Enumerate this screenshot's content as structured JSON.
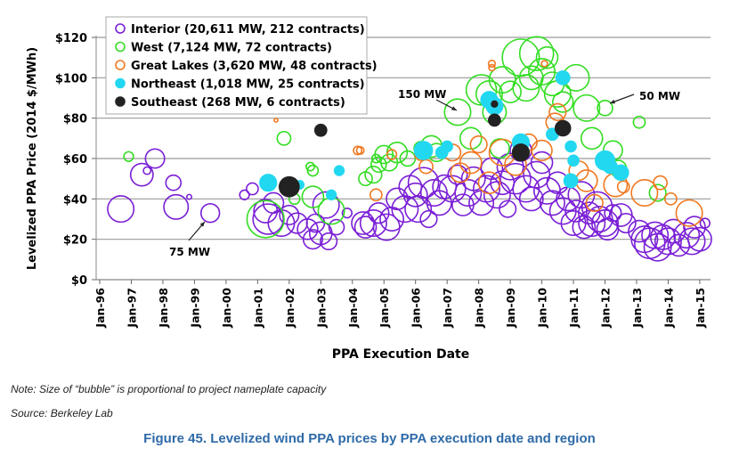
{
  "chart_data": {
    "type": "scatter",
    "subtype": "bubble",
    "xlabel": "PPA Execution Date",
    "ylabel": "Levelized PPA Price (2014 $/MWh)",
    "ylim": [
      0,
      120
    ],
    "yticks": [
      "$0",
      "$20",
      "$40",
      "$60",
      "$80",
      "$100",
      "$120"
    ],
    "xticks": [
      "Jan-96",
      "Jan-97",
      "Jan-98",
      "Jan-99",
      "Jan-00",
      "Jan-01",
      "Jan-02",
      "Jan-03",
      "Jan-04",
      "Jan-05",
      "Jan-06",
      "Jan-07",
      "Jan-08",
      "Jan-09",
      "Jan-10",
      "Jan-11",
      "Jan-12",
      "Jan-13",
      "Jan-14",
      "Jan-15"
    ],
    "grid": "horizontal",
    "legend_position": "top-left",
    "bubble_size": "project nameplate capacity (MW)",
    "annotations": [
      {
        "text": "75 MW",
        "date": "1999-07",
        "price": 33
      },
      {
        "text": "150 MW",
        "date": "2007-05",
        "price": 83
      },
      {
        "text": "50 MW",
        "date": "2012-01",
        "price": 85
      }
    ],
    "series": [
      {
        "name": "Interior (20,611 MW, 212 contracts)",
        "color": "#7a1fd6",
        "filled": false,
        "points": [
          [
            "1996-09",
            35,
            150
          ],
          [
            "1997-05",
            52,
            110
          ],
          [
            "1997-07",
            54,
            12
          ],
          [
            "1997-10",
            60,
            80
          ],
          [
            "1998-05",
            48,
            50
          ],
          [
            "1998-06",
            36,
            130
          ],
          [
            "1998-11",
            41,
            5
          ],
          [
            "1999-07",
            33,
            75
          ],
          [
            "2000-08",
            42,
            20
          ],
          [
            "2000-11",
            45,
            30
          ],
          [
            "2001-04",
            34,
            120
          ],
          [
            "2001-05",
            30,
            200
          ],
          [
            "2001-07",
            38,
            90
          ],
          [
            "2001-10",
            28,
            150
          ],
          [
            "2002-01",
            32,
            80
          ],
          [
            "2002-04",
            28,
            90
          ],
          [
            "2002-08",
            25,
            90
          ],
          [
            "2002-10",
            20,
            80
          ],
          [
            "2002-11",
            28,
            70
          ],
          [
            "2003-01",
            23,
            110
          ],
          [
            "2003-03",
            37,
            150
          ],
          [
            "2003-04",
            19,
            60
          ],
          [
            "2003-07",
            26,
            50
          ],
          [
            "2003-11",
            33,
            20
          ],
          [
            "2004-05",
            28,
            110
          ],
          [
            "2004-06",
            26,
            100
          ],
          [
            "2004-09",
            28,
            150
          ],
          [
            "2004-11",
            33,
            90
          ],
          [
            "2005-02",
            26,
            150
          ],
          [
            "2005-04",
            30,
            120
          ],
          [
            "2005-06",
            40,
            100
          ],
          [
            "2005-09",
            35,
            150
          ],
          [
            "2005-11",
            46,
            110
          ],
          [
            "2006-01",
            42,
            120
          ],
          [
            "2006-02",
            35,
            150
          ],
          [
            "2006-04",
            48,
            200
          ],
          [
            "2006-06",
            30,
            60
          ],
          [
            "2006-08",
            43,
            150
          ],
          [
            "2006-10",
            38,
            130
          ],
          [
            "2006-12",
            46,
            120
          ],
          [
            "2007-03",
            45,
            150
          ],
          [
            "2007-05",
            52,
            80
          ],
          [
            "2007-07",
            37,
            100
          ],
          [
            "2007-09",
            43,
            150
          ],
          [
            "2007-11",
            50,
            120
          ],
          [
            "2008-02",
            38,
            130
          ],
          [
            "2008-04",
            45,
            150
          ],
          [
            "2008-06",
            55,
            100
          ],
          [
            "2008-08",
            42,
            150
          ],
          [
            "2008-10",
            48,
            120
          ],
          [
            "2008-12",
            35,
            60
          ],
          [
            "2009-01",
            56,
            150
          ],
          [
            "2009-03",
            50,
            200
          ],
          [
            "2009-05",
            64,
            100
          ],
          [
            "2009-07",
            45,
            150
          ],
          [
            "2009-09",
            40,
            120
          ],
          [
            "2009-11",
            52,
            150
          ],
          [
            "2010-01",
            58,
            100
          ],
          [
            "2010-03",
            44,
            150
          ],
          [
            "2010-05",
            38,
            130
          ],
          [
            "2010-07",
            48,
            100
          ],
          [
            "2010-09",
            34,
            150
          ],
          [
            "2010-11",
            40,
            120
          ],
          [
            "2011-01",
            28,
            130
          ],
          [
            "2011-02",
            34,
            100
          ],
          [
            "2011-04",
            42,
            150
          ],
          [
            "2011-05",
            26,
            110
          ],
          [
            "2011-07",
            33,
            100
          ],
          [
            "2011-08",
            28,
            150
          ],
          [
            "2011-10",
            36,
            200
          ],
          [
            "2011-11",
            30,
            140
          ],
          [
            "2012-01",
            28,
            150
          ],
          [
            "2012-02",
            25,
            100
          ],
          [
            "2012-04",
            33,
            60
          ],
          [
            "2012-07",
            32,
            110
          ],
          [
            "2012-09",
            28,
            80
          ],
          [
            "2013-02",
            24,
            100
          ],
          [
            "2013-04",
            20,
            150
          ],
          [
            "2013-06",
            18,
            200
          ],
          [
            "2013-08",
            22,
            150
          ],
          [
            "2013-09",
            16,
            160
          ],
          [
            "2013-11",
            21,
            130
          ],
          [
            "2014-01",
            19,
            150
          ],
          [
            "2014-03",
            24,
            120
          ],
          [
            "2014-05",
            17,
            100
          ],
          [
            "2014-08",
            22,
            140
          ],
          [
            "2014-10",
            19,
            150
          ],
          [
            "2014-11",
            26,
            100
          ],
          [
            "2015-01",
            20,
            120
          ],
          [
            "2015-03",
            28,
            20
          ]
        ]
      },
      {
        "name": "West (7,124 MW, 72 contracts)",
        "color": "#33dd22",
        "filled": false,
        "points": [
          [
            "1996-12",
            61,
            20
          ],
          [
            "2001-04",
            30,
            300
          ],
          [
            "2001-11",
            70,
            40
          ],
          [
            "2002-03",
            40,
            25
          ],
          [
            "2002-09",
            56,
            15
          ],
          [
            "2002-10",
            54,
            25
          ],
          [
            "2002-10",
            41,
            100
          ],
          [
            "2003-05",
            34,
            150
          ],
          [
            "2004-06",
            50,
            40
          ],
          [
            "2004-09",
            52,
            60
          ],
          [
            "2004-10",
            60,
            15
          ],
          [
            "2004-11",
            57,
            50
          ],
          [
            "2005-01",
            62,
            70
          ],
          [
            "2005-03",
            58,
            60
          ],
          [
            "2005-06",
            63,
            90
          ],
          [
            "2005-10",
            60,
            50
          ],
          [
            "2006-03",
            65,
            40
          ],
          [
            "2006-07",
            66,
            100
          ],
          [
            "2006-09",
            63,
            70
          ],
          [
            "2007-05",
            83,
            150
          ],
          [
            "2007-10",
            70,
            100
          ],
          [
            "2008-02",
            94,
            200
          ],
          [
            "2008-05",
            92,
            150
          ],
          [
            "2008-07",
            83,
            120
          ],
          [
            "2008-09",
            65,
            80
          ],
          [
            "2008-10",
            99,
            150
          ],
          [
            "2009-01",
            93,
            100
          ],
          [
            "2009-05",
            110,
            300
          ],
          [
            "2009-07",
            95,
            150
          ],
          [
            "2009-09",
            100,
            120
          ],
          [
            "2009-11",
            112,
            250
          ],
          [
            "2010-01",
            103,
            150
          ],
          [
            "2010-03",
            110,
            100
          ],
          [
            "2010-05",
            97,
            120
          ],
          [
            "2010-07",
            92,
            150
          ],
          [
            "2010-09",
            88,
            90
          ],
          [
            "2011-02",
            100,
            150
          ],
          [
            "2011-06",
            85,
            150
          ],
          [
            "2011-08",
            70,
            100
          ],
          [
            "2012-01",
            85,
            50
          ],
          [
            "2012-04",
            64,
            80
          ],
          [
            "2012-06",
            55,
            60
          ],
          [
            "2013-02",
            78,
            30
          ],
          [
            "2013-09",
            43,
            60
          ]
        ]
      },
      {
        "name": "Great Lakes (3,620 MW, 48 contracts)",
        "color": "#f07820",
        "filled": false,
        "points": [
          [
            "2001-08",
            79,
            3
          ],
          [
            "2004-03",
            64,
            15
          ],
          [
            "2004-04",
            64,
            12
          ],
          [
            "2004-10",
            42,
            30
          ],
          [
            "2005-04",
            62,
            20
          ],
          [
            "2006-03",
            62,
            30
          ],
          [
            "2006-05",
            56,
            40
          ],
          [
            "2007-03",
            63,
            60
          ],
          [
            "2007-06",
            53,
            80
          ],
          [
            "2007-10",
            58,
            100
          ],
          [
            "2008-01",
            67,
            60
          ],
          [
            "2008-05",
            48,
            100
          ],
          [
            "2008-06",
            107,
            10
          ],
          [
            "2008-06",
            105,
            8
          ],
          [
            "2008-10",
            63,
            150
          ],
          [
            "2009-03",
            57,
            100
          ],
          [
            "2009-08",
            68,
            60
          ],
          [
            "2010-01",
            64,
            90
          ],
          [
            "2010-02",
            107,
            8
          ],
          [
            "2010-06",
            78,
            70
          ],
          [
            "2010-07",
            83,
            60
          ],
          [
            "2011-03",
            54,
            80
          ],
          [
            "2011-06",
            49,
            100
          ],
          [
            "2011-09",
            38,
            60
          ],
          [
            "2012-05",
            47,
            120
          ],
          [
            "2012-08",
            46,
            30
          ],
          [
            "2013-04",
            43,
            150
          ],
          [
            "2013-10",
            48,
            40
          ],
          [
            "2014-02",
            40,
            30
          ],
          [
            "2014-09",
            33,
            150
          ]
        ]
      },
      {
        "name": "Northeast (1,018 MW, 25 contracts)",
        "color": "#22d8f0",
        "filled": true,
        "points": [
          [
            "2001-05",
            48,
            60
          ],
          [
            "2002-05",
            47,
            15
          ],
          [
            "2003-05",
            42,
            20
          ],
          [
            "2003-08",
            54,
            20
          ],
          [
            "2006-04",
            64,
            70
          ],
          [
            "2006-11",
            63,
            30
          ],
          [
            "2007-01",
            66,
            25
          ],
          [
            "2008-05",
            89,
            60
          ],
          [
            "2008-07",
            86,
            60
          ],
          [
            "2009-05",
            68,
            60
          ],
          [
            "2010-05",
            72,
            30
          ],
          [
            "2010-09",
            100,
            40
          ],
          [
            "2010-12",
            66,
            25
          ],
          [
            "2011-01",
            59,
            25
          ],
          [
            "2010-12",
            49,
            40
          ],
          [
            "2012-01",
            59,
            80
          ],
          [
            "2012-03",
            56,
            40
          ],
          [
            "2012-07",
            53,
            50
          ]
        ]
      },
      {
        "name": "Southeast (268 MW, 6 contracts)",
        "color": "#222222",
        "filled": true,
        "points": [
          [
            "2002-01",
            46,
            85
          ],
          [
            "2003-01",
            74,
            30
          ],
          [
            "2008-07",
            87,
            8
          ],
          [
            "2008-07",
            79,
            30
          ],
          [
            "2009-05",
            63,
            60
          ],
          [
            "2010-09",
            75,
            50
          ]
        ]
      }
    ]
  },
  "note": "Note: Size of “bubble” is proportional to project nameplate capacity",
  "source": "Source: Berkeley Lab",
  "caption": "Figure 45. Levelized wind PPA prices by PPA execution date and region"
}
